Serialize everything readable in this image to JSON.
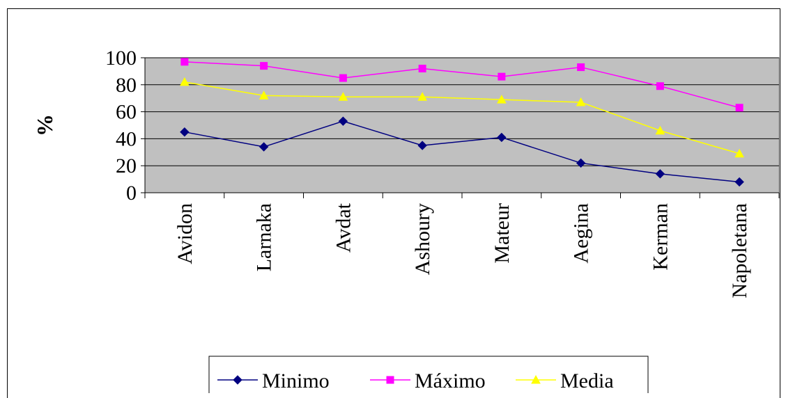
{
  "chart_data": {
    "type": "line",
    "title": "",
    "xlabel": "",
    "ylabel": "%",
    "ylim": [
      0,
      100
    ],
    "yticks": [
      0,
      20,
      40,
      60,
      80,
      100
    ],
    "grid": true,
    "legend_position": "bottom",
    "categories": [
      "Avidon",
      "Larnaka",
      "Avdat",
      "Ashoury",
      "Mateur",
      "Aegina",
      "Kerman",
      "Napoletana"
    ],
    "series": [
      {
        "name": "Minimo",
        "color": "#000080",
        "marker": "diamond",
        "values": [
          45,
          34,
          53,
          35,
          41,
          22,
          14,
          8
        ]
      },
      {
        "name": "Máximo",
        "color": "#FF00FF",
        "marker": "square",
        "values": [
          97,
          94,
          85,
          92,
          86,
          93,
          79,
          63
        ]
      },
      {
        "name": "Media",
        "color": "#FFFF00",
        "marker": "triangle",
        "values": [
          82,
          72,
          71,
          71,
          69,
          67,
          46,
          29
        ]
      }
    ],
    "plot_background": "#C0C0C0"
  }
}
